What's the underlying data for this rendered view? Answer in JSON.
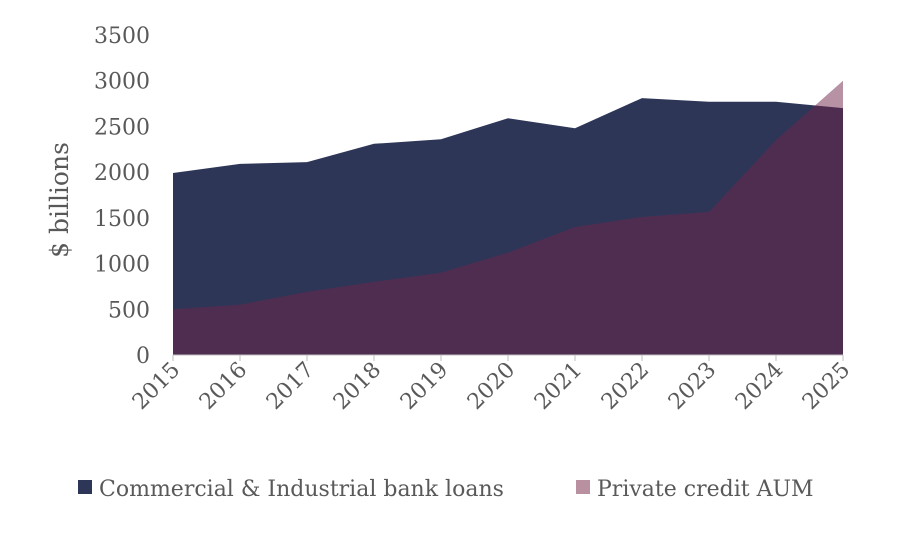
{
  "chart_data": {
    "type": "area",
    "title": "",
    "xlabel": "",
    "ylabel": "$ billions",
    "ylim": [
      0,
      3500
    ],
    "yticks": [
      0,
      500,
      1000,
      1500,
      2000,
      2500,
      3000,
      3500
    ],
    "categories": [
      "2015",
      "2016",
      "2017",
      "2018",
      "2019",
      "2020",
      "2021",
      "2022",
      "2023",
      "2024",
      "2025"
    ],
    "grid": false,
    "legend_position": "bottom",
    "series": [
      {
        "name": "Commercial & Industrial bank loans",
        "color": "#2E3658",
        "values": [
          1990,
          2090,
          2110,
          2310,
          2360,
          2590,
          2480,
          2810,
          2770,
          2770,
          2700
        ]
      },
      {
        "name": "Private credit AUM",
        "color": "#B8909F",
        "fill": "#702449",
        "values": [
          500,
          550,
          690,
          800,
          900,
          1120,
          1400,
          1510,
          1565,
          2350,
          3000
        ]
      }
    ]
  }
}
